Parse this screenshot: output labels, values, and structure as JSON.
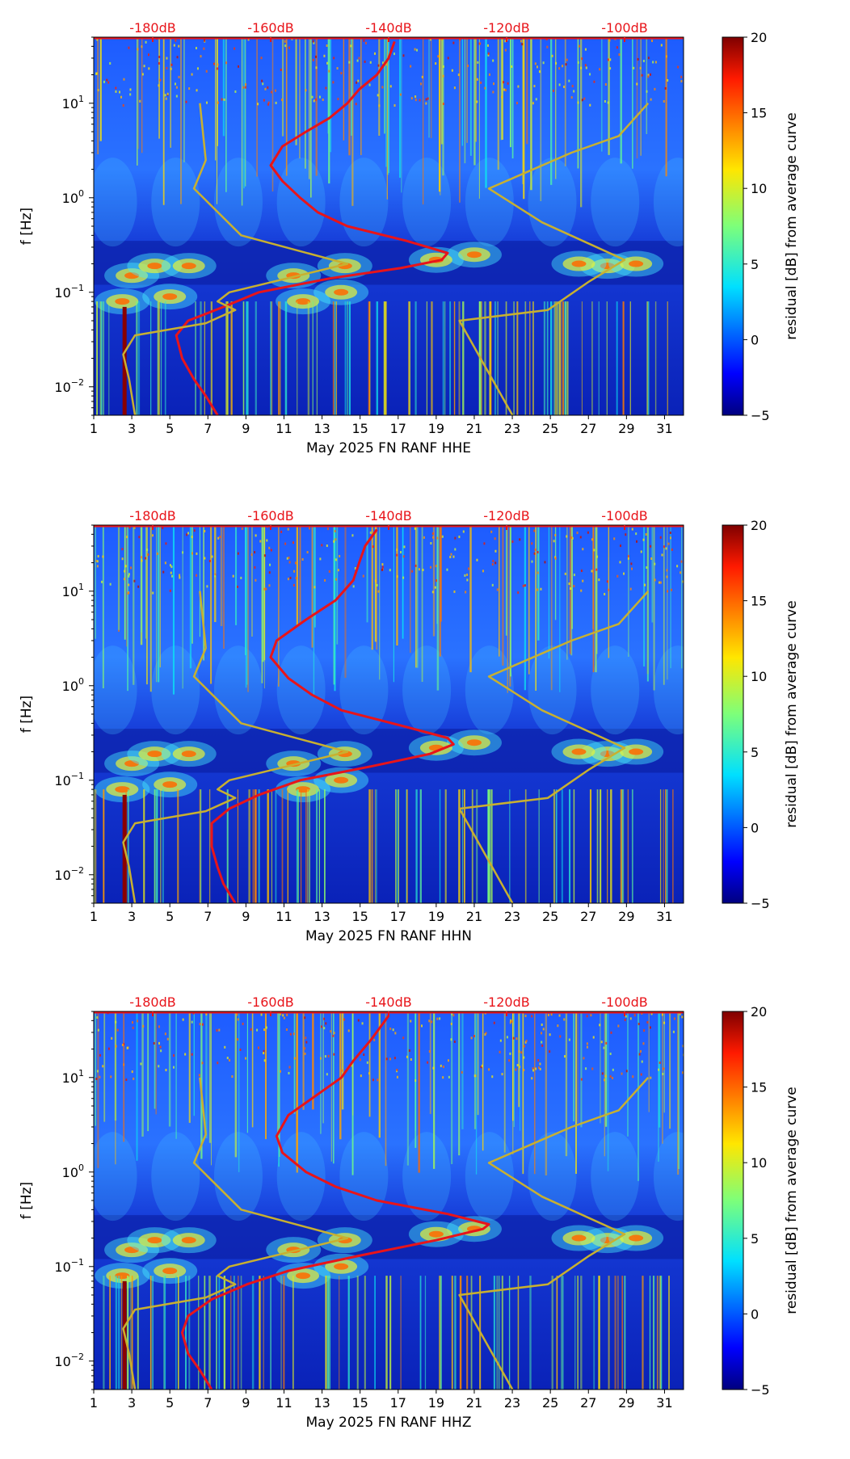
{
  "chart_data": [
    {
      "type": "heatmap",
      "title": "",
      "xlabel": "May 2025 FN RANF  HHE",
      "ylabel": "f [Hz]",
      "x_ticks": [
        "1",
        "3",
        "5",
        "7",
        "9",
        "11",
        "13",
        "15",
        "17",
        "19",
        "21",
        "23",
        "25",
        "27",
        "29",
        "31"
      ],
      "x_range": [
        1,
        32
      ],
      "y_ticks": [
        {
          "exp": "-2",
          "value": 0.01
        },
        {
          "exp": "-1",
          "value": 0.1
        },
        {
          "exp": "0",
          "value": 1
        },
        {
          "exp": "1",
          "value": 10
        }
      ],
      "y_range": [
        0.005,
        50
      ],
      "db_scale_labels": [
        "-180dB",
        "-160dB",
        "-140dB",
        "-120dB",
        "-100dB"
      ],
      "db_range": [
        -190,
        -90
      ],
      "colorbar": {
        "label": "residual [dB] from average curve",
        "ticks": [
          "20",
          "15",
          "10",
          "5",
          "0",
          "−5"
        ],
        "range": [
          -5,
          20
        ]
      },
      "series": [
        {
          "name": "average PSD curve",
          "color": "#e8141a",
          "points": [
            [
              -169,
              0.005
            ],
            [
              -171,
              0.008
            ],
            [
              -173,
              0.012
            ],
            [
              -175,
              0.02
            ],
            [
              -176,
              0.035
            ],
            [
              -174,
              0.05
            ],
            [
              -168,
              0.07
            ],
            [
              -162,
              0.1
            ],
            [
              -150,
              0.14
            ],
            [
              -138,
              0.18
            ],
            [
              -131,
              0.22
            ],
            [
              -130,
              0.26
            ],
            [
              -137,
              0.35
            ],
            [
              -147,
              0.5
            ],
            [
              -152,
              0.7
            ],
            [
              -155,
              1.0
            ],
            [
              -158,
              1.5
            ],
            [
              -160,
              2.2
            ],
            [
              -158,
              3.5
            ],
            [
              -154,
              5
            ],
            [
              -150,
              7
            ],
            [
              -147,
              10
            ],
            [
              -145,
              14
            ],
            [
              -142,
              20
            ],
            [
              -140,
              30
            ],
            [
              -139,
              45
            ]
          ]
        },
        {
          "name": "noise model high",
          "color": "#c8b030",
          "points": [
            [
              -119,
              0.005
            ],
            [
              -128,
              0.05
            ],
            [
              -113,
              0.065
            ],
            [
              -106,
              0.13
            ],
            [
              -100,
              0.22
            ],
            [
              -114,
              0.55
            ],
            [
              -123,
              1.25
            ],
            [
              -109,
              3.0
            ],
            [
              -101,
              4.5
            ],
            [
              -96,
              10
            ]
          ]
        },
        {
          "name": "noise model low",
          "color": "#c8b030",
          "points": [
            [
              -183,
              0.005
            ],
            [
              -184,
              0.012
            ],
            [
              -185,
              0.022
            ],
            [
              -183,
              0.035
            ],
            [
              -171,
              0.047
            ],
            [
              -166,
              0.065
            ],
            [
              -169,
              0.08
            ],
            [
              -167,
              0.1
            ],
            [
              -147,
              0.2
            ],
            [
              -165,
              0.4
            ],
            [
              -173,
              1.25
            ],
            [
              -171,
              2.5
            ],
            [
              -172,
              10
            ]
          ]
        }
      ]
    },
    {
      "type": "heatmap",
      "title": "",
      "xlabel": "May 2025 FN RANF  HHN",
      "ylabel": "f [Hz]",
      "x_ticks": [
        "1",
        "3",
        "5",
        "7",
        "9",
        "11",
        "13",
        "15",
        "17",
        "19",
        "21",
        "23",
        "25",
        "27",
        "29",
        "31"
      ],
      "x_range": [
        1,
        32
      ],
      "y_ticks": [
        {
          "exp": "-2",
          "value": 0.01
        },
        {
          "exp": "-1",
          "value": 0.1
        },
        {
          "exp": "0",
          "value": 1
        },
        {
          "exp": "1",
          "value": 10
        }
      ],
      "y_range": [
        0.005,
        50
      ],
      "db_scale_labels": [
        "-180dB",
        "-160dB",
        "-140dB",
        "-120dB",
        "-100dB"
      ],
      "db_range": [
        -190,
        -90
      ],
      "colorbar": {
        "label": "residual [dB] from average curve",
        "ticks": [
          "20",
          "15",
          "10",
          "5",
          "0",
          "−5"
        ],
        "range": [
          -5,
          20
        ]
      },
      "series": [
        {
          "name": "average PSD curve",
          "color": "#e8141a",
          "points": [
            [
              -166,
              0.005
            ],
            [
              -168,
              0.008
            ],
            [
              -169,
              0.012
            ],
            [
              -170,
              0.02
            ],
            [
              -170,
              0.035
            ],
            [
              -167,
              0.05
            ],
            [
              -162,
              0.07
            ],
            [
              -155,
              0.1
            ],
            [
              -143,
              0.14
            ],
            [
              -133,
              0.19
            ],
            [
              -129,
              0.24
            ],
            [
              -130,
              0.28
            ],
            [
              -138,
              0.38
            ],
            [
              -148,
              0.55
            ],
            [
              -153,
              0.8
            ],
            [
              -157,
              1.2
            ],
            [
              -160,
              2.0
            ],
            [
              -159,
              3.0
            ],
            [
              -154,
              5
            ],
            [
              -149,
              8
            ],
            [
              -146,
              13
            ],
            [
              -145,
              20
            ],
            [
              -144,
              30
            ],
            [
              -142,
              45
            ]
          ]
        },
        {
          "name": "noise model high",
          "color": "#c8b030",
          "points": [
            [
              -119,
              0.005
            ],
            [
              -128,
              0.05
            ],
            [
              -113,
              0.065
            ],
            [
              -106,
              0.13
            ],
            [
              -100,
              0.22
            ],
            [
              -114,
              0.55
            ],
            [
              -123,
              1.25
            ],
            [
              -109,
              3.0
            ],
            [
              -101,
              4.5
            ],
            [
              -96,
              10
            ]
          ]
        },
        {
          "name": "noise model low",
          "color": "#c8b030",
          "points": [
            [
              -183,
              0.005
            ],
            [
              -184,
              0.012
            ],
            [
              -185,
              0.022
            ],
            [
              -183,
              0.035
            ],
            [
              -171,
              0.047
            ],
            [
              -166,
              0.065
            ],
            [
              -169,
              0.08
            ],
            [
              -167,
              0.1
            ],
            [
              -147,
              0.2
            ],
            [
              -165,
              0.4
            ],
            [
              -173,
              1.25
            ],
            [
              -171,
              2.5
            ],
            [
              -172,
              10
            ]
          ]
        }
      ]
    },
    {
      "type": "heatmap",
      "title": "",
      "xlabel": "May 2025 FN RANF  HHZ",
      "ylabel": "f [Hz]",
      "x_ticks": [
        "1",
        "3",
        "5",
        "7",
        "9",
        "11",
        "13",
        "15",
        "17",
        "19",
        "21",
        "23",
        "25",
        "27",
        "29",
        "31"
      ],
      "x_range": [
        1,
        32
      ],
      "y_ticks": [
        {
          "exp": "-2",
          "value": 0.01
        },
        {
          "exp": "-1",
          "value": 0.1
        },
        {
          "exp": "0",
          "value": 1
        },
        {
          "exp": "1",
          "value": 10
        }
      ],
      "y_range": [
        0.005,
        50
      ],
      "db_scale_labels": [
        "-180dB",
        "-160dB",
        "-140dB",
        "-120dB",
        "-100dB"
      ],
      "db_range": [
        -190,
        -90
      ],
      "colorbar": {
        "label": "residual [dB] from average curve",
        "ticks": [
          "20",
          "15",
          "10",
          "5",
          "0",
          "−5"
        ],
        "range": [
          -5,
          20
        ]
      },
      "series": [
        {
          "name": "average PSD curve",
          "color": "#e8141a",
          "points": [
            [
              -170,
              0.005
            ],
            [
              -172,
              0.008
            ],
            [
              -174,
              0.012
            ],
            [
              -175,
              0.02
            ],
            [
              -174,
              0.03
            ],
            [
              -170,
              0.045
            ],
            [
              -164,
              0.065
            ],
            [
              -157,
              0.09
            ],
            [
              -145,
              0.13
            ],
            [
              -132,
              0.19
            ],
            [
              -124,
              0.25
            ],
            [
              -123,
              0.28
            ],
            [
              -130,
              0.36
            ],
            [
              -142,
              0.5
            ],
            [
              -149,
              0.7
            ],
            [
              -154,
              1.0
            ],
            [
              -158,
              1.6
            ],
            [
              -159,
              2.4
            ],
            [
              -157,
              4
            ],
            [
              -153,
              6
            ],
            [
              -148,
              10
            ],
            [
              -146,
              15
            ],
            [
              -143,
              25
            ],
            [
              -140,
              45
            ]
          ]
        },
        {
          "name": "noise model high",
          "color": "#c8b030",
          "points": [
            [
              -119,
              0.005
            ],
            [
              -128,
              0.05
            ],
            [
              -113,
              0.065
            ],
            [
              -106,
              0.13
            ],
            [
              -100,
              0.22
            ],
            [
              -114,
              0.55
            ],
            [
              -123,
              1.25
            ],
            [
              -109,
              3.0
            ],
            [
              -101,
              4.5
            ],
            [
              -96,
              10
            ]
          ]
        },
        {
          "name": "noise model low",
          "color": "#c8b030",
          "points": [
            [
              -183,
              0.005
            ],
            [
              -184,
              0.012
            ],
            [
              -185,
              0.022
            ],
            [
              -183,
              0.035
            ],
            [
              -171,
              0.047
            ],
            [
              -166,
              0.065
            ],
            [
              -169,
              0.08
            ],
            [
              -167,
              0.1
            ],
            [
              -147,
              0.2
            ],
            [
              -165,
              0.4
            ],
            [
              -173,
              1.25
            ],
            [
              -171,
              2.5
            ],
            [
              -172,
              10
            ]
          ]
        }
      ]
    }
  ]
}
